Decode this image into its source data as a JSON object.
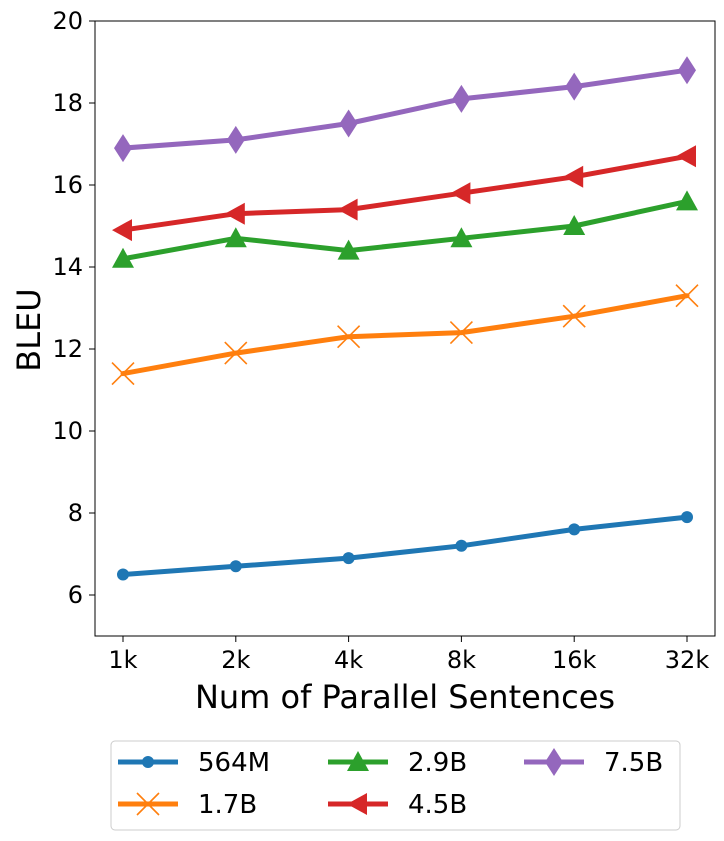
{
  "chart_data": {
    "type": "line",
    "xlabel": "Num of Parallel Sentences",
    "ylabel": "BLEU",
    "categories": [
      "1k",
      "2k",
      "4k",
      "8k",
      "16k",
      "32k"
    ],
    "ylim": [
      5,
      20
    ],
    "yticks": [
      6,
      8,
      10,
      12,
      14,
      16,
      18,
      20
    ],
    "grid": false,
    "legend_position": "bottom",
    "series": [
      {
        "name": "564M",
        "marker": "circle",
        "color": "#1f77b4",
        "values": [
          6.5,
          6.7,
          6.9,
          7.2,
          7.6,
          7.9
        ]
      },
      {
        "name": "1.7B",
        "marker": "x",
        "color": "#ff7f0e",
        "values": [
          11.4,
          11.9,
          12.3,
          12.4,
          12.8,
          13.3
        ]
      },
      {
        "name": "2.9B",
        "marker": "triangle-up",
        "color": "#2ca02c",
        "values": [
          14.2,
          14.7,
          14.4,
          14.7,
          15.0,
          15.6
        ]
      },
      {
        "name": "4.5B",
        "marker": "triangle-left",
        "color": "#d62728",
        "values": [
          14.9,
          15.3,
          15.4,
          15.8,
          16.2,
          16.7
        ]
      },
      {
        "name": "7.5B",
        "marker": "diamond",
        "color": "#9467bd",
        "values": [
          16.9,
          17.1,
          17.5,
          18.1,
          18.4,
          18.8
        ]
      }
    ]
  }
}
